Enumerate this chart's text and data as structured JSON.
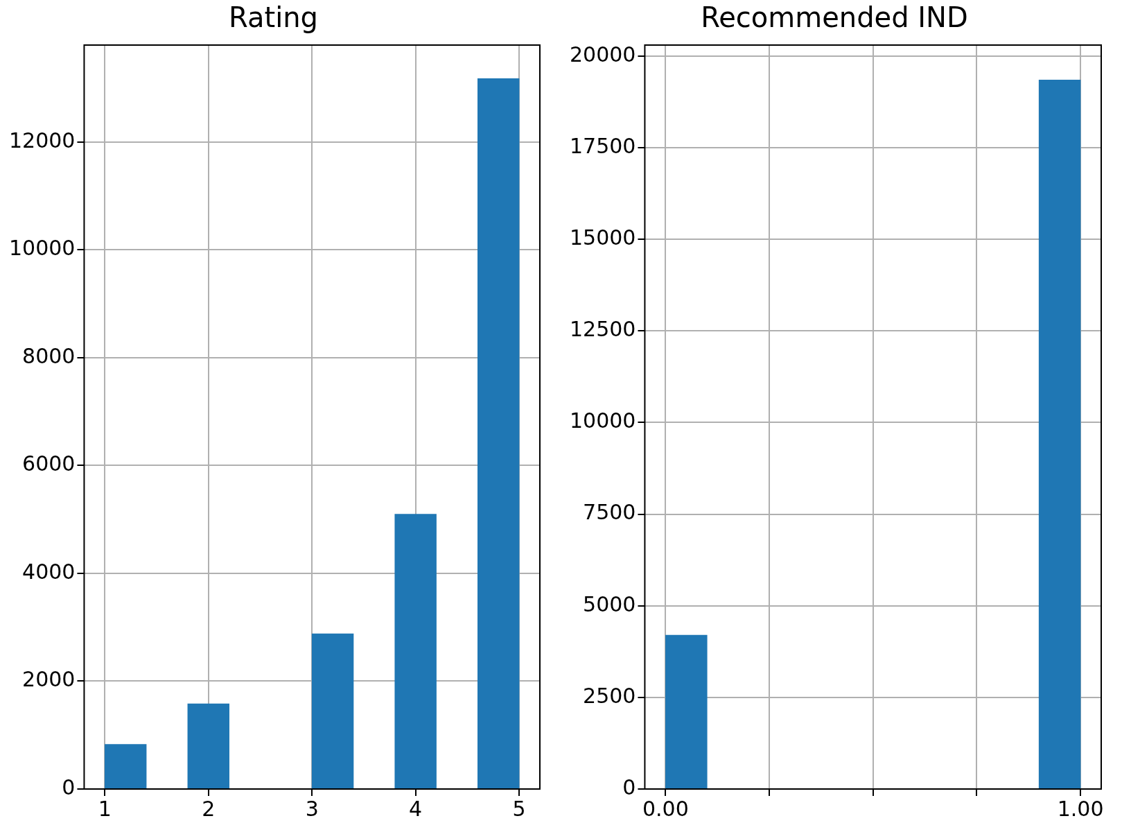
{
  "chart_data": [
    {
      "type": "histogram",
      "title": "Rating",
      "bins": [
        1,
        1.4,
        1.8,
        2.2,
        2.6,
        3.0,
        3.4,
        3.8,
        4.2,
        4.6,
        5.0
      ],
      "values": [
        830,
        0,
        1580,
        0,
        0,
        2880,
        0,
        5100,
        0,
        13180
      ],
      "color": "#1f77b4",
      "xlim": [
        0.8,
        5.2
      ],
      "xticks": [
        1,
        2,
        3,
        4,
        5
      ],
      "ylim": [
        0,
        13800
      ],
      "yticks": [
        0,
        2000,
        4000,
        6000,
        8000,
        10000,
        12000
      ],
      "grid": true,
      "legend": false
    },
    {
      "type": "histogram",
      "title": "Recommended IND",
      "bins": [
        0,
        0.1,
        0.2,
        0.3,
        0.4,
        0.5,
        0.6,
        0.7,
        0.8,
        0.9,
        1.0
      ],
      "values": [
        4200,
        0,
        0,
        0,
        0,
        0,
        0,
        0,
        0,
        19350
      ],
      "color": "#1f77b4",
      "xlim": [
        -0.05,
        1.05
      ],
      "xticks": [
        {
          "value": 0,
          "label": "0.00"
        },
        {
          "value": 0.25,
          "label": null
        },
        {
          "value": 0.5,
          "label": null
        },
        {
          "value": 0.75,
          "label": null
        },
        {
          "value": 1,
          "label": "1.00"
        }
      ],
      "ylim": [
        0,
        20300
      ],
      "yticks": [
        0,
        2500,
        5000,
        7500,
        10000,
        12500,
        15000,
        17500,
        20000
      ],
      "grid": true,
      "legend": false
    }
  ]
}
